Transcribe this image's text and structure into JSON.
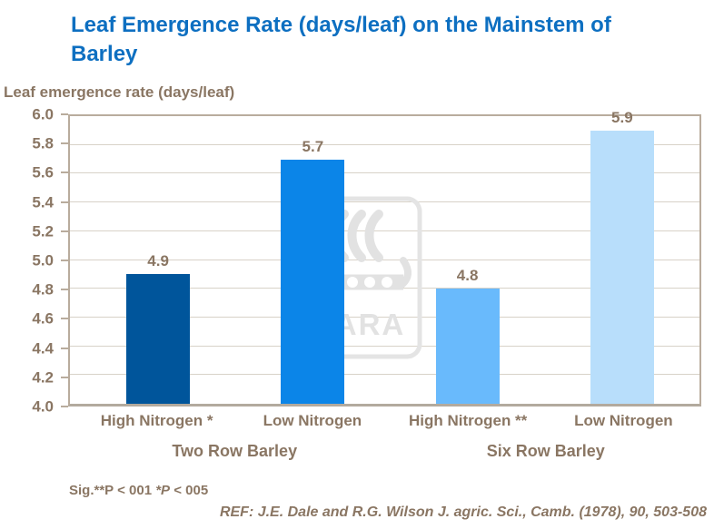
{
  "title": "Leaf Emergence Rate (days/leaf) on the Mainstem of Barley",
  "y_axis_title": "Leaf emergence rate (days/leaf)",
  "chart_data": {
    "type": "bar",
    "categories": [
      "High Nitrogen *",
      "Low Nitrogen",
      "High Nitrogen **",
      "Low Nitrogen"
    ],
    "values": [
      4.9,
      5.7,
      4.8,
      5.9
    ],
    "value_labels": [
      "4.9",
      "5.7",
      "4.8",
      "5.9"
    ],
    "bar_colors": [
      "#00559b",
      "#0b85e8",
      "#69bafc",
      "#b8defb"
    ],
    "groups": [
      "Two Row Barley",
      "Six Row Barley"
    ],
    "title": "Leaf Emergence Rate (days/leaf) on the Mainstem of Barley",
    "xlabel": "",
    "ylabel": "Leaf emergence rate (days/leaf)",
    "ylim": [
      4.0,
      6.0
    ],
    "ytick_step": 0.2,
    "grid": true,
    "legend": "none"
  },
  "watermark": {
    "text": "YARA",
    "icon": "yara-viking-ship-logo"
  },
  "footer": {
    "sig_prefix": "Sig.**P < 001",
    "sig_italic": "*P",
    "sig_suffix": "< 005",
    "reference": "REF: J.E. Dale and R.G. Wilson J. agric. Sci., Camb. (1978), 90, 503-508"
  },
  "colors": {
    "title_blue": "#0d6fc1",
    "text_brown": "#8a7663",
    "gridline": "#d8d2c8",
    "axis_border": "#b9ac9d",
    "watermark_gray": "#e2e2e2"
  }
}
